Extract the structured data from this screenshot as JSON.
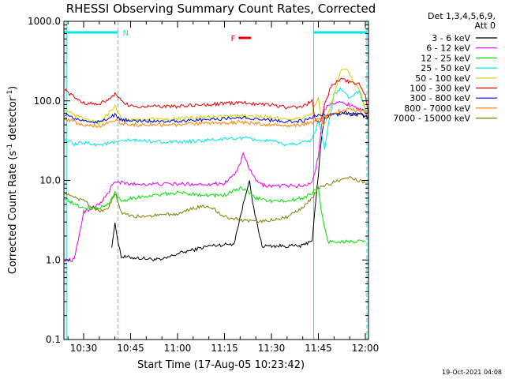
{
  "chart_data": {
    "type": "line",
    "title": "RHESSI Observing Summary Count Rates, Corrected",
    "xlabel": "Start Time (17-Aug-05 10:23:42)",
    "ylabel": "Corrected Count Rate (s",
    "ylabel_sup1": "-1",
    "ylabel_mid": " detector",
    "ylabel_sup2": "-1",
    "ylabel_end": ")",
    "y_log": true,
    "xlim": [
      "10:23:42",
      "12:01:00"
    ],
    "ylim": [
      0.1,
      1000
    ],
    "x_ticks": [
      "10:30",
      "10:45",
      "11:00",
      "11:15",
      "11:30",
      "11:45",
      "12:00"
    ],
    "y_ticks": [
      "1000.0",
      "100.0",
      "10.0",
      "1.0",
      "0.1"
    ],
    "legend_header": [
      "Det 1,3,4,5,6,9,",
      "Att 0"
    ],
    "legend_position": "right",
    "flags": [
      {
        "label": "N",
        "color": "#00e5e5",
        "ranges": [
          [
            "10:23:42",
            "10:41:00"
          ],
          [
            "11:43:30",
            "12:00:30"
          ]
        ]
      },
      {
        "label": "F",
        "color": "#e00000",
        "ranges": [
          [
            "11:19:30",
            "11:23:30"
          ]
        ]
      }
    ],
    "vertical_markers": [
      {
        "time": "10:24:30",
        "style": "solid",
        "color": "#00e5e5"
      },
      {
        "time": "10:41:00",
        "style": "dashed",
        "color": "#00e5e5"
      },
      {
        "time": "11:43:30",
        "style": "solid",
        "color": "#00e5e5"
      },
      {
        "time": "12:00:30",
        "style": "dashed",
        "color": "#00e5e5"
      }
    ],
    "series": [
      {
        "name": "3 - 6 keV",
        "color": "#000000",
        "x": [
          "10:26",
          "10:38",
          "10:39",
          "10:40",
          "10:42",
          "10:55",
          "11:00",
          "11:10",
          "11:18",
          "11:21",
          "11:23",
          "11:24",
          "11:27",
          "11:35",
          "11:40",
          "11:43",
          "11:45",
          "11:46",
          "11:47",
          "11:49",
          "11:52",
          "11:55",
          "11:58",
          "12:01"
        ],
        "values": [
          null,
          null,
          1.5,
          2.8,
          1.1,
          1.0,
          1.2,
          1.5,
          1.6,
          5.0,
          10.5,
          5.0,
          1.5,
          1.5,
          1.5,
          1.8,
          12,
          35,
          60,
          68,
          70,
          70,
          68,
          62
        ]
      },
      {
        "name": "6 - 12 keV",
        "color": "#e800e8",
        "x": [
          "10:24",
          "10:27",
          "10:30",
          "10:35",
          "10:38",
          "10:39",
          "10:41",
          "10:45",
          "11:00",
          "11:10",
          "11:15",
          "11:19",
          "11:21",
          "11:23",
          "11:25",
          "11:27",
          "11:30",
          "11:35",
          "11:40",
          "11:43",
          "11:45",
          "11:46",
          "11:47",
          "11:49",
          "11:52",
          "11:55",
          "11:58",
          "12:01"
        ],
        "values": [
          1.0,
          1.0,
          4,
          5,
          7,
          9,
          9.5,
          9.0,
          9.0,
          9.0,
          9.2,
          13,
          21,
          14,
          10,
          8.8,
          8.5,
          8.6,
          8.5,
          9.5,
          20,
          50,
          80,
          95,
          95,
          90,
          80,
          68
        ]
      },
      {
        "name": "12 - 25 keV",
        "color": "#00e000",
        "x": [
          "10:24",
          "10:27",
          "10:30",
          "10:35",
          "10:38",
          "10:40",
          "10:42",
          "10:45",
          "11:00",
          "11:10",
          "11:15",
          "11:20",
          "11:23",
          "11:25",
          "11:30",
          "11:35",
          "11:40",
          "11:43",
          "11:45",
          "11:46",
          "11:47",
          "11:48",
          "11:52",
          "11:56",
          "12:00"
        ],
        "values": [
          6,
          5,
          4.5,
          4.5,
          5,
          7,
          5.5,
          6,
          7,
          6.5,
          6.5,
          8,
          7,
          6,
          5.5,
          5.5,
          6,
          7,
          8,
          4,
          2.5,
          1.7,
          1.7,
          1.7,
          1.7
        ]
      },
      {
        "name": "25 - 50 keV",
        "color": "#00e5e5",
        "x": [
          "10:24",
          "10:27",
          "10:30",
          "10:35",
          "10:40",
          "10:45",
          "11:00",
          "11:10",
          "11:20",
          "11:30",
          "11:35",
          "11:40",
          "11:43",
          "11:45",
          "11:46",
          "11:47",
          "11:48",
          "11:50",
          "11:52",
          "11:55",
          "11:58",
          "12:00",
          "12:01"
        ],
        "values": [
          33,
          28,
          30,
          28,
          30,
          32,
          30,
          32,
          34,
          31,
          28,
          30,
          33,
          55,
          40,
          25,
          45,
          120,
          140,
          110,
          130,
          80,
          50
        ]
      },
      {
        "name": "50 - 100 keV",
        "color": "#d0d000",
        "x": [
          "10:24",
          "10:27",
          "10:30",
          "10:35",
          "10:38",
          "10:40",
          "10:42",
          "10:45",
          "11:00",
          "11:10",
          "11:20",
          "11:30",
          "11:35",
          "11:40",
          "11:43",
          "11:45",
          "11:46",
          "11:47",
          "11:49",
          "11:52",
          "11:54",
          "11:56",
          "11:58",
          "12:00",
          "12:01"
        ],
        "values": [
          80,
          65,
          60,
          52,
          70,
          85,
          60,
          58,
          60,
          62,
          65,
          62,
          58,
          60,
          70,
          110,
          55,
          50,
          90,
          230,
          260,
          180,
          140,
          80,
          55
        ]
      },
      {
        "name": "100 - 300 keV",
        "color": "#e00000",
        "x": [
          "10:24",
          "10:27",
          "10:30",
          "10:35",
          "10:40",
          "10:42",
          "10:45",
          "11:00",
          "11:10",
          "11:20",
          "11:30",
          "11:35",
          "11:40",
          "11:43",
          "11:44",
          "11:45",
          "11:46",
          "11:47",
          "11:49",
          "11:52",
          "11:55",
          "11:58",
          "12:00",
          "12:01"
        ],
        "values": [
          140,
          110,
          95,
          90,
          120,
          100,
          85,
          85,
          90,
          95,
          90,
          82,
          85,
          100,
          55,
          55,
          60,
          90,
          150,
          190,
          170,
          160,
          120,
          70
        ]
      },
      {
        "name": "300 - 800 keV",
        "color": "#0000e0",
        "x": [
          "10:24",
          "10:27",
          "10:30",
          "10:35",
          "10:40",
          "10:42",
          "10:45",
          "11:00",
          "11:10",
          "11:20",
          "11:30",
          "11:35",
          "11:40",
          "11:43",
          "11:45",
          "11:47",
          "11:50",
          "11:55",
          "12:00",
          "12:01"
        ],
        "values": [
          68,
          60,
          56,
          54,
          66,
          58,
          56,
          56,
          58,
          62,
          57,
          55,
          56,
          60,
          68,
          66,
          68,
          68,
          66,
          62
        ]
      },
      {
        "name": "800 - 7000 keV",
        "color": "#ff8000",
        "x": [
          "10:24",
          "10:27",
          "10:30",
          "10:35",
          "10:40",
          "10:42",
          "10:45",
          "11:00",
          "11:10",
          "11:20",
          "11:30",
          "11:35",
          "11:40",
          "11:43",
          "11:45",
          "11:47",
          "11:50",
          "11:55",
          "12:00",
          "12:01"
        ],
        "values": [
          60,
          55,
          50,
          48,
          58,
          52,
          50,
          50,
          52,
          54,
          50,
          48,
          50,
          54,
          60,
          62,
          72,
          78,
          72,
          62
        ]
      },
      {
        "name": "7000 - 15000 keV",
        "color": "#808000",
        "x": [
          "10:24",
          "10:27",
          "10:30",
          "10:35",
          "10:38",
          "10:40",
          "10:42",
          "10:45",
          "11:00",
          "11:05",
          "11:10",
          "11:15",
          "11:20",
          "11:25",
          "11:30",
          "11:35",
          "11:40",
          "11:43",
          "11:45",
          "11:48",
          "11:52",
          "11:55",
          "11:58",
          "12:00"
        ],
        "values": [
          7,
          6,
          5.5,
          4,
          4.5,
          7,
          4,
          3.5,
          3.8,
          4.5,
          4.8,
          3.5,
          3.2,
          3.0,
          3.2,
          3.4,
          4.5,
          6,
          8,
          9,
          10,
          11,
          10,
          9
        ]
      }
    ]
  },
  "footer_timestamp": "19-Oct-2021 04:08"
}
